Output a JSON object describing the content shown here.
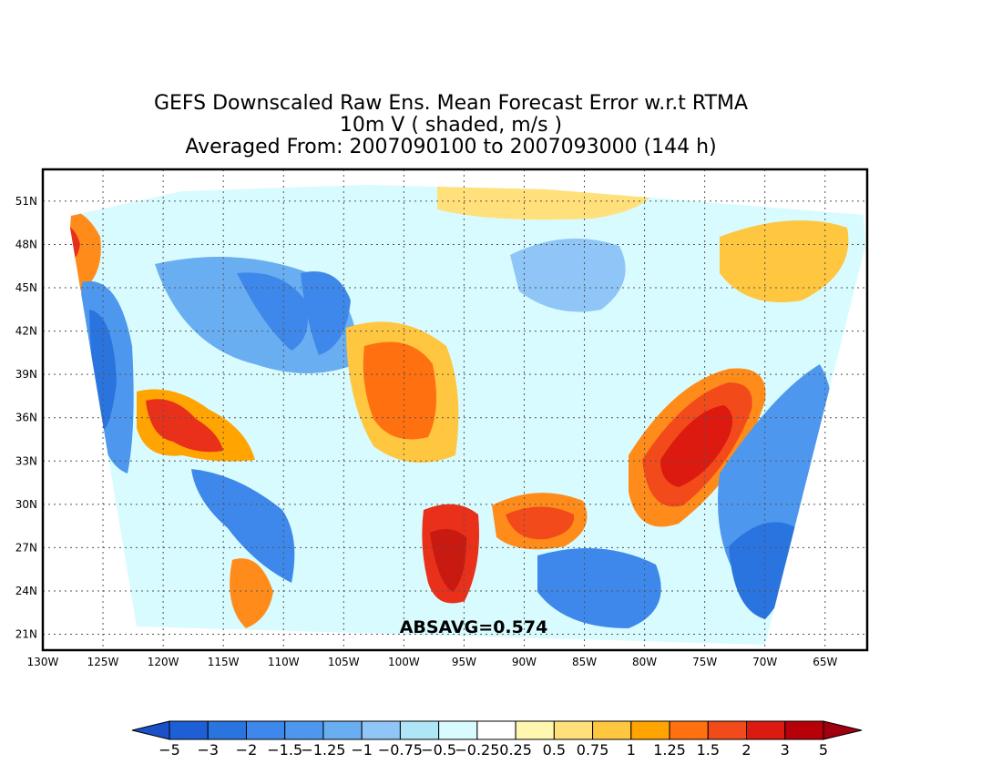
{
  "title": {
    "line1": "GEFS Downscaled Raw Ens. Mean Forecast Error w.r.t RTMA",
    "line2": "10m V ( shaded, m/s )",
    "line3": "Averaged From: 2007090100 to 2007093000 (144 h)"
  },
  "map": {
    "annotation": "ABSAVG=0.574",
    "lon_labels": [
      "130W",
      "125W",
      "120W",
      "115W",
      "110W",
      "105W",
      "100W",
      "95W",
      "90W",
      "85W",
      "80W",
      "75W",
      "70W",
      "65W"
    ],
    "lat_labels": [
      "51N",
      "48N",
      "45N",
      "42N",
      "39N",
      "36N",
      "33N",
      "30N",
      "27N",
      "24N",
      "21N"
    ],
    "lon_range": [
      -130,
      -61.5
    ],
    "lat_range": [
      19.9,
      53.2
    ],
    "grid": true
  },
  "colorbar": {
    "labels": [
      "−5",
      "−3",
      "−2",
      "−1.5",
      "−1.25",
      "−1",
      "−0.75",
      "−0.5",
      "−0.25",
      "0.25",
      "0.5",
      "0.75",
      "1",
      "1.25",
      "1.5",
      "2",
      "3",
      "5"
    ],
    "colors": [
      "#1f5fd6",
      "#2a74e0",
      "#3d88ea",
      "#4d98ee",
      "#6aaef2",
      "#8fc6f7",
      "#aee6f8",
      "#d8fbff",
      "#ffffff",
      "#fff7b0",
      "#ffe07a",
      "#ffc640",
      "#ffa400",
      "#ff7010",
      "#f24a1a",
      "#dc1a10",
      "#b80008"
    ],
    "under_color": "#1a50c8",
    "over_color": "#a00010"
  },
  "field": {
    "background": "#d8fbff",
    "regions": [
      {
        "name": "pacific-nw-warm",
        "color": "#ff8c1a"
      },
      {
        "name": "pacific-nw-core",
        "color": "#e8301a"
      },
      {
        "name": "west-coast-cool",
        "color": "#4d98ee"
      },
      {
        "name": "west-coast-cool-deep",
        "color": "#2a74e0"
      },
      {
        "name": "southwest-warm",
        "color": "#ffa400"
      },
      {
        "name": "southwest-core",
        "color": "#e8301a"
      },
      {
        "name": "mexico-cool",
        "color": "#3d88ea"
      },
      {
        "name": "rockies-cool",
        "color": "#6aaef2"
      },
      {
        "name": "rockies-cool-deep",
        "color": "#3d88ea"
      },
      {
        "name": "plains-warm",
        "color": "#ffc640"
      },
      {
        "name": "plains-core",
        "color": "#ff7010"
      },
      {
        "name": "texas-jet",
        "color": "#e8301a"
      },
      {
        "name": "texas-jet-core",
        "color": "#c81a10"
      },
      {
        "name": "gulf-warm",
        "color": "#ff8c1a"
      },
      {
        "name": "gulf-core",
        "color": "#f24a1a"
      },
      {
        "name": "east-coast-warm",
        "color": "#ff8c1a"
      },
      {
        "name": "east-coast-core",
        "color": "#f24a1a"
      },
      {
        "name": "east-coast-peak",
        "color": "#dc1a10"
      },
      {
        "name": "atlantic-cool",
        "color": "#4d98ee"
      },
      {
        "name": "atlantic-cool-deep",
        "color": "#2a74e0"
      },
      {
        "name": "caribbean-cool",
        "color": "#3d88ea"
      },
      {
        "name": "great-lakes-cool",
        "color": "#8fc6f7"
      },
      {
        "name": "new-england-warm",
        "color": "#ffc640"
      },
      {
        "name": "canada-warm",
        "color": "#ffe07a"
      },
      {
        "name": "baja-warm",
        "color": "#ff8c1a"
      }
    ]
  }
}
